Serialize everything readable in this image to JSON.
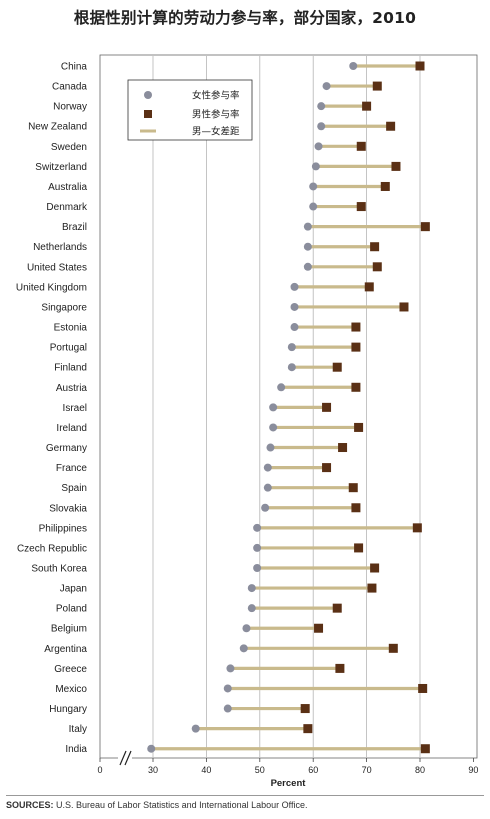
{
  "title": "根据性别计算的劳动力参与率，部分国家，2010",
  "sources_label": "SOURCES:",
  "sources_text": " U.S. Bureau of Labor Statistics and International Labour Office.",
  "colors": {
    "female": "#8a8d9c",
    "male": "#5a3015",
    "gap": "#c9ba8c",
    "grid": "#b5b5b5"
  },
  "chart_data": {
    "type": "dumbbell",
    "title": "根据性别计算的劳动力参与率，部分国家，2010",
    "xlabel": "Percent",
    "xlim": [
      0,
      90
    ],
    "xticks": [
      0,
      30,
      40,
      50,
      60,
      70,
      80,
      90
    ],
    "axis_break": true,
    "grid": true,
    "legend": {
      "placement": "top-left",
      "entries": [
        {
          "label": "女性参与率",
          "marker": "circle"
        },
        {
          "label": "男性参与率",
          "marker": "square"
        },
        {
          "label": "男—女差距",
          "marker": "line"
        }
      ]
    },
    "categories": [
      "China",
      "Canada",
      "Norway",
      "New Zealand",
      "Sweden",
      "Switzerland",
      "Australia",
      "Denmark",
      "Brazil",
      "Netherlands",
      "United States",
      "United Kingdom",
      "Singapore",
      "Estonia",
      "Portugal",
      "Finland",
      "Austria",
      "Israel",
      "Ireland",
      "Germany",
      "France",
      "Spain",
      "Slovakia",
      "Philippines",
      "Czech Republic",
      "South Korea",
      "Japan",
      "Poland",
      "Belgium",
      "Argentina",
      "Greece",
      "Mexico",
      "Hungary",
      "Italy",
      "India"
    ],
    "series": [
      {
        "name": "女性参与率",
        "values": [
          67.5,
          62.5,
          61.5,
          61.5,
          61,
          60.5,
          60,
          60,
          59,
          59,
          59,
          56.5,
          56.5,
          56.5,
          56,
          56,
          54,
          52.5,
          52.5,
          52,
          51.5,
          51.5,
          51,
          49.5,
          49.5,
          49.5,
          48.5,
          48.5,
          47.5,
          47,
          44.5,
          44,
          44,
          38,
          29
        ]
      },
      {
        "name": "男性参与率",
        "values": [
          80,
          72,
          70,
          74.5,
          69,
          75.5,
          73.5,
          69,
          81,
          71.5,
          72,
          70.5,
          77,
          68,
          68,
          64.5,
          68,
          62.5,
          68.5,
          65.5,
          62.5,
          67.5,
          68,
          79.5,
          68.5,
          71.5,
          71,
          64.5,
          61,
          75,
          65,
          80.5,
          58.5,
          59,
          81
        ]
      }
    ]
  }
}
